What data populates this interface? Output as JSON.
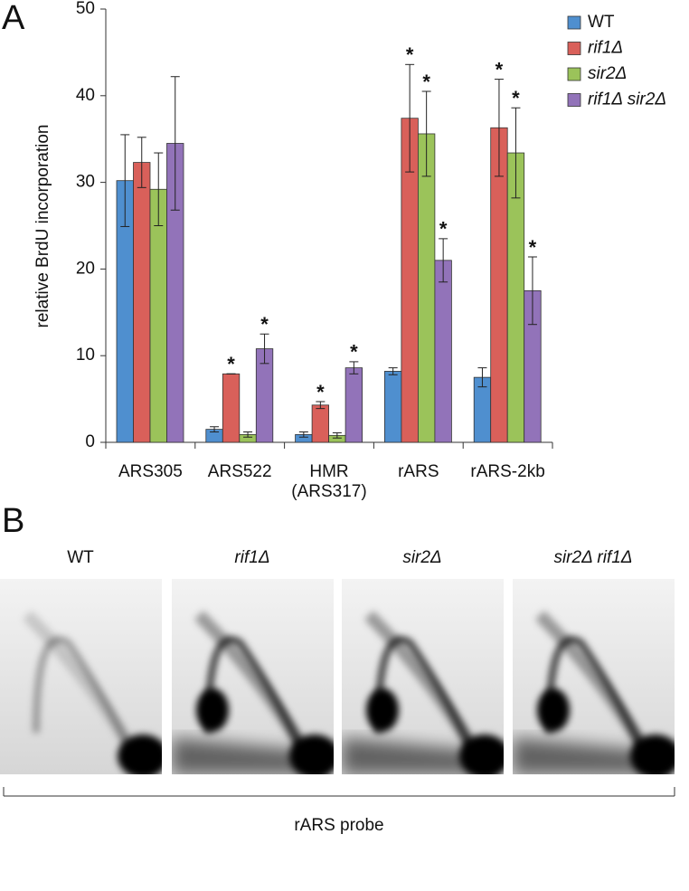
{
  "panel_a_label": "A",
  "chart_data": {
    "type": "bar",
    "ylabel": "relative BrdU incorporation",
    "categories": [
      "ARS305",
      "ARS522",
      "HMR (ARS317)",
      "rARS",
      "rARS-2kb"
    ],
    "series": [
      {
        "name": "WT",
        "color": "#4f8fcf",
        "values": [
          30.2,
          1.5,
          0.9,
          8.2,
          7.5
        ],
        "errors": [
          5.3,
          0.3,
          0.3,
          0.4,
          1.1
        ],
        "annotations": [
          null,
          null,
          null,
          null,
          null
        ]
      },
      {
        "name": "rif1Δ",
        "color": "#d9605a",
        "values": [
          32.3,
          7.9,
          4.3,
          37.4,
          36.3
        ],
        "errors": [
          2.9,
          0,
          0.4,
          6.2,
          5.6
        ],
        "annotations": [
          null,
          "*",
          "*",
          "*",
          "*"
        ]
      },
      {
        "name": "sir2Δ",
        "color": "#9bc35a",
        "values": [
          29.2,
          0.9,
          0.8,
          35.6,
          33.4
        ],
        "errors": [
          4.2,
          0.3,
          0.3,
          4.9,
          5.2
        ],
        "annotations": [
          null,
          null,
          null,
          "*",
          "*"
        ]
      },
      {
        "name": "rif1Δ sir2Δ",
        "color": "#9273b9",
        "values": [
          34.5,
          10.8,
          8.6,
          21.0,
          17.5
        ],
        "errors": [
          7.7,
          1.7,
          0.7,
          2.5,
          3.9
        ],
        "annotations": [
          null,
          "*",
          "*",
          "*",
          "*"
        ]
      }
    ],
    "ylim": [
      0,
      50
    ],
    "yticks": [
      0,
      10,
      20,
      30,
      40,
      50
    ]
  },
  "panel_b": {
    "label": "B",
    "gel_titles": [
      "WT",
      "rif1Δ",
      "sir2Δ",
      "sir2Δ rif1Δ"
    ],
    "probe_label": "rARS probe"
  }
}
